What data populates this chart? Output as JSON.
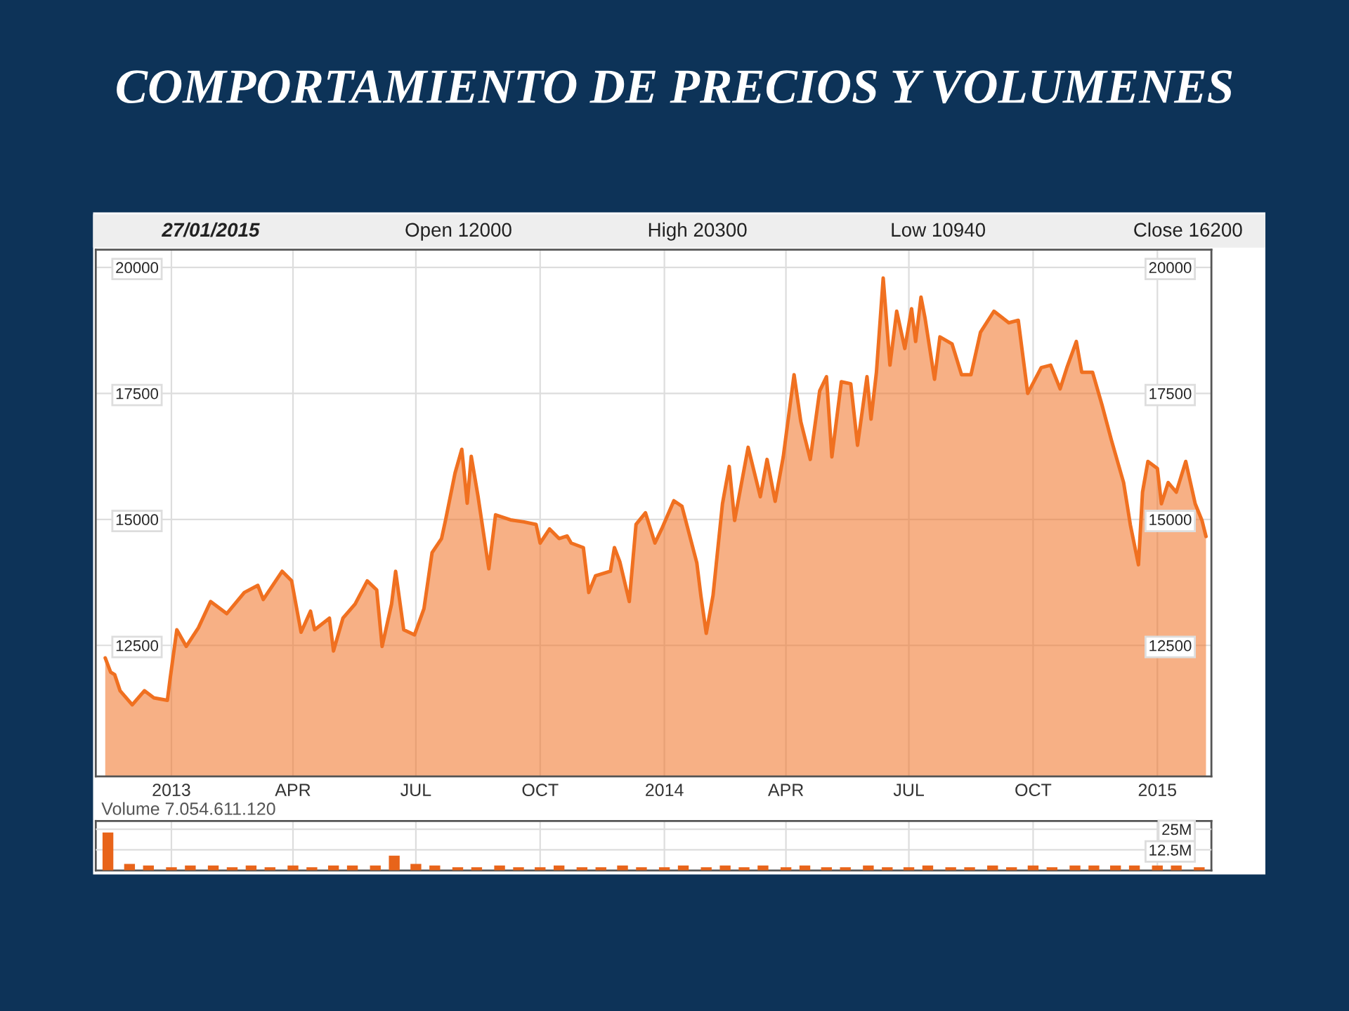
{
  "chart_data": [
    {
      "type": "area",
      "title": "COMPORTAMIENTO DE PRECIOS Y VOLUMENES",
      "annotations": [
        "27/01/2015",
        "Open 12000",
        "High 20300",
        "Low 10940",
        "Close 16200"
      ],
      "series": [
        {
          "color": "#f07020",
          "x": [
            "2012-11-13",
            "2012-11-17",
            "2012-11-20",
            "2012-11-24",
            "2012-12-03",
            "2012-12-12",
            "2012-12-19",
            "2012-12-29",
            "2012-12-31",
            "2013-01-05",
            "2013-01-12",
            "2013-01-21",
            "2013-01-30",
            "2013-02-11",
            "2013-02-24",
            "2013-03-06",
            "2013-03-10",
            "2013-03-24",
            "2013-03-31",
            "2013-04-07",
            "2013-04-14",
            "2013-04-17",
            "2013-04-28",
            "2013-05-01",
            "2013-05-08",
            "2013-05-17",
            "2013-05-26",
            "2013-06-02",
            "2013-06-06",
            "2013-06-13",
            "2013-06-16",
            "2013-06-22",
            "2013-06-30",
            "2013-07-07",
            "2013-07-13",
            "2013-07-20",
            "2013-07-23",
            "2013-07-30",
            "2013-08-04",
            "2013-08-08",
            "2013-08-11",
            "2013-08-16",
            "2013-08-24",
            "2013-08-29",
            "2013-09-09",
            "2013-09-19",
            "2013-09-28",
            "2013-10-01",
            "2013-10-08",
            "2013-10-15",
            "2013-10-21",
            "2013-10-24",
            "2013-11-02",
            "2013-11-06",
            "2013-11-11",
            "2013-11-22",
            "2013-11-25",
            "2013-11-29",
            "2013-12-06",
            "2013-12-11",
            "2013-12-18",
            "2013-12-25",
            "2013-12-30",
            "2014-01-08",
            "2014-01-14",
            "2014-01-25",
            "2014-01-28",
            "2014-02-01",
            "2014-02-06",
            "2014-02-13",
            "2014-02-18",
            "2014-02-22",
            "2014-03-04",
            "2014-03-13",
            "2014-03-18",
            "2014-03-24",
            "2014-03-30",
            "2014-04-07",
            "2014-04-12",
            "2014-04-19",
            "2014-04-26",
            "2014-05-01",
            "2014-05-05",
            "2014-05-12",
            "2014-05-19",
            "2014-05-24",
            "2014-05-31",
            "2014-06-03",
            "2014-06-07",
            "2014-06-12",
            "2014-06-17",
            "2014-06-22",
            "2014-06-28",
            "2014-07-03",
            "2014-07-06",
            "2014-07-10",
            "2014-07-13",
            "2014-07-20",
            "2014-07-24",
            "2014-08-02",
            "2014-08-09",
            "2014-08-16",
            "2014-08-23",
            "2014-09-02",
            "2014-09-13",
            "2014-09-20",
            "2014-09-27",
            "2014-10-07",
            "2014-10-14",
            "2014-10-21",
            "2014-10-26",
            "2014-11-02",
            "2014-11-06",
            "2014-11-14",
            "2014-11-21",
            "2014-11-28",
            "2014-12-07",
            "2014-12-12",
            "2014-12-18",
            "2014-12-21",
            "2014-12-25",
            "2015-01-01",
            "2015-01-04",
            "2015-01-09",
            "2015-01-15",
            "2015-01-22",
            "2015-01-29",
            "2015-02-03",
            "2015-02-06"
          ],
          "values": [
            12250,
            11970,
            11920,
            11600,
            11320,
            11600,
            11460,
            11410,
            11830,
            12810,
            12480,
            12850,
            13370,
            13130,
            13550,
            13690,
            13410,
            13970,
            13780,
            12760,
            13180,
            12810,
            13040,
            12390,
            13040,
            13320,
            13780,
            13600,
            12480,
            13320,
            13970,
            12810,
            12710,
            13230,
            14340,
            14620,
            14990,
            15920,
            16390,
            15320,
            16250,
            15460,
            14020,
            15090,
            14990,
            14950,
            14900,
            14530,
            14810,
            14620,
            14670,
            14530,
            14440,
            13550,
            13880,
            13970,
            14440,
            14160,
            13370,
            14900,
            15130,
            14530,
            14810,
            15370,
            15260,
            14140,
            13490,
            12740,
            13490,
            15310,
            16050,
            14980,
            16430,
            15450,
            16190,
            15360,
            16240,
            17870,
            16940,
            16190,
            17550,
            17830,
            16240,
            17730,
            17690,
            16470,
            17830,
            16990,
            17920,
            19790,
            18060,
            19130,
            18390,
            19180,
            18530,
            19410,
            18990,
            17780,
            18620,
            18480,
            17870,
            17870,
            18710,
            19130,
            18900,
            18950,
            17500,
            18010,
            18060,
            17590,
            18010,
            18530,
            17920,
            17920,
            17270,
            16570,
            15730,
            14890,
            14100,
            15540,
            16150,
            16010,
            15310,
            15730,
            15540,
            16150,
            15310,
            14980,
            14660
          ]
        }
      ],
      "xlim": [
        "2012-11-06",
        "2015-02-10"
      ],
      "xticks": [
        {
          "value": "2013-01-01",
          "label": "2013"
        },
        {
          "value": "2013-04-01",
          "label": "APR"
        },
        {
          "value": "2013-07-01",
          "label": "JUL"
        },
        {
          "value": "2013-10-01",
          "label": "OCT"
        },
        {
          "value": "2014-01-01",
          "label": "2014"
        },
        {
          "value": "2014-04-01",
          "label": "APR"
        },
        {
          "value": "2014-07-01",
          "label": "JUL"
        },
        {
          "value": "2014-10-01",
          "label": "OCT"
        },
        {
          "value": "2015-01-01",
          "label": "2015"
        }
      ],
      "ylim": [
        9900,
        20350
      ],
      "yticks": [
        12500,
        15000,
        17500,
        20000
      ],
      "y2lim": [
        9900,
        20350
      ],
      "y2ticks": [
        12500,
        15000,
        17500,
        20000
      ],
      "grid": true,
      "line_style": "solid"
    },
    {
      "type": "bar",
      "title": "Volume 7.054.611.120",
      "series": [
        {
          "color": "#e8641a",
          "axis": "y2",
          "x": [
            "2012-11-15",
            "2012-12-01",
            "2012-12-15",
            "2013-01-01",
            "2013-01-15",
            "2013-02-01",
            "2013-02-15",
            "2013-03-01",
            "2013-03-15",
            "2013-04-01",
            "2013-04-15",
            "2013-05-01",
            "2013-05-15",
            "2013-06-01",
            "2013-06-15",
            "2013-07-01",
            "2013-07-15",
            "2013-08-01",
            "2013-08-15",
            "2013-09-01",
            "2013-09-15",
            "2013-10-01",
            "2013-10-15",
            "2013-11-01",
            "2013-11-15",
            "2013-12-01",
            "2013-12-15",
            "2014-01-01",
            "2014-01-15",
            "2014-02-01",
            "2014-02-15",
            "2014-03-01",
            "2014-03-15",
            "2014-04-01",
            "2014-04-15",
            "2014-05-01",
            "2014-05-15",
            "2014-06-01",
            "2014-06-15",
            "2014-07-01",
            "2014-07-15",
            "2014-08-01",
            "2014-08-15",
            "2014-09-01",
            "2014-09-15",
            "2014-10-01",
            "2014-10-15",
            "2014-11-01",
            "2014-11-15",
            "2014-12-01",
            "2014-12-15",
            "2015-01-01",
            "2015-01-15",
            "2015-02-01"
          ],
          "values": [
            23,
            4,
            3,
            2,
            3,
            3,
            2,
            3,
            2,
            3,
            2,
            3,
            3,
            3,
            9,
            4,
            3,
            2,
            2,
            3,
            2,
            2,
            3,
            2,
            2,
            3,
            2,
            2,
            3,
            2,
            3,
            2,
            3,
            2,
            3,
            2,
            2,
            3,
            2,
            2,
            3,
            2,
            2,
            3,
            2,
            3,
            2,
            3,
            3,
            3,
            3,
            3,
            3,
            2
          ]
        }
      ],
      "xlim": [
        "2012-11-06",
        "2015-02-10"
      ],
      "y2lim": [
        0,
        30
      ],
      "y2ticks": [
        {
          "value": 12.5,
          "label": "12.5M"
        },
        {
          "value": 25,
          "label": "25M"
        }
      ],
      "tick_labels": "y",
      "grid": true
    }
  ]
}
